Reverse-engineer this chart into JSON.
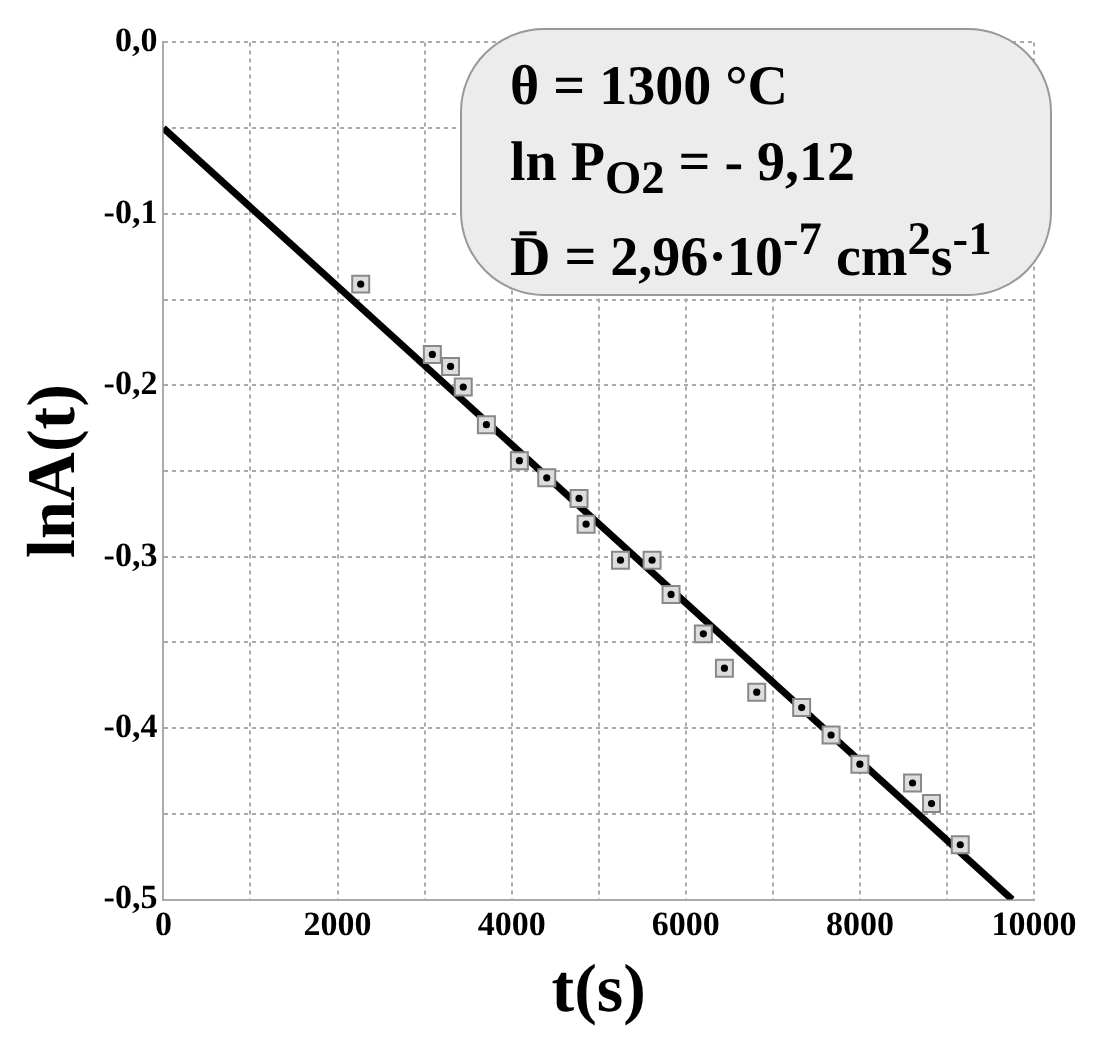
{
  "chart_data": {
    "type": "scatter",
    "xlabel": "t(s)",
    "ylabel": "lnA(t)",
    "annotations": [
      "θ = 1300 °C",
      "ln P$_{O2}$ = - 9,12",
      "D̄ = 2,96·10$^{-7}$ cm$^{2}$s$^{-1}$"
    ],
    "xlim": [
      0,
      10000
    ],
    "xticks": [
      0,
      {
        "value": 1000,
        "label": null
      },
      2000,
      {
        "value": 3000,
        "label": null
      },
      4000,
      {
        "value": 5000,
        "label": null
      },
      6000,
      {
        "value": 7000,
        "label": null
      },
      8000,
      {
        "value": 9000,
        "label": null
      },
      10000
    ],
    "ylim": [
      -0.5,
      0
    ],
    "yticks": [
      {
        "value": -0.5,
        "label": "-0,5"
      },
      {
        "value": -0.45,
        "label": null
      },
      {
        "value": -0.4,
        "label": "-0,4"
      },
      {
        "value": -0.35,
        "label": null
      },
      {
        "value": -0.3,
        "label": "-0,3"
      },
      {
        "value": -0.25,
        "label": null
      },
      {
        "value": -0.2,
        "label": "-0,2"
      },
      {
        "value": -0.15,
        "label": null
      },
      {
        "value": -0.1,
        "label": "-0,1"
      },
      {
        "value": -0.05,
        "label": null
      },
      {
        "value": 0,
        "label": "0,0"
      }
    ],
    "grid": true,
    "legend": false,
    "series": [
      {
        "type": "scatter",
        "marker": "square",
        "color": "#dddddd",
        "x": [
          2266,
          3089,
          3298,
          3444,
          3710,
          4089,
          4403,
          4774,
          4855,
          5250,
          5613,
          5831,
          6202,
          6444,
          6815,
          7331,
          7669,
          8000,
          8605,
          8823,
          9153
        ],
        "values": [
          -0.141,
          -0.182,
          -0.189,
          -0.201,
          -0.223,
          -0.244,
          -0.254,
          -0.266,
          -0.281,
          -0.302,
          -0.302,
          -0.322,
          -0.345,
          -0.365,
          -0.379,
          -0.388,
          -0.404,
          -0.421,
          -0.432,
          -0.444,
          -0.468
        ]
      },
      {
        "type": "line",
        "marker": "none",
        "color": "#000000",
        "x": [
          0,
          9750
        ],
        "values": [
          -0.05,
          -0.5
        ]
      }
    ]
  }
}
